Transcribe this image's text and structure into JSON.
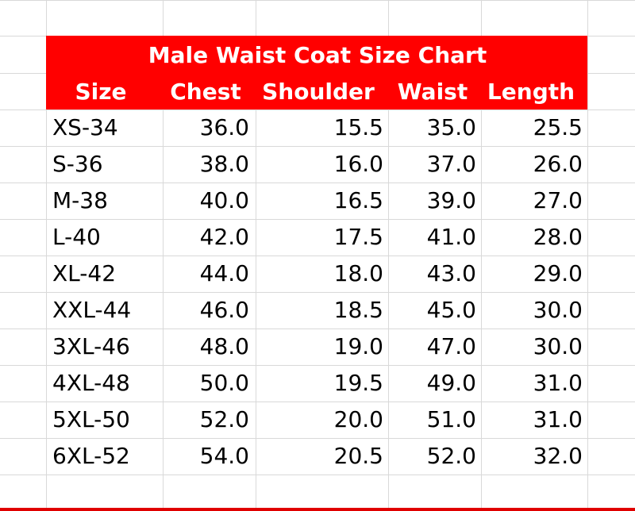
{
  "table": {
    "title": "Male Waist Coat Size Chart",
    "columns": [
      "Size",
      "Chest",
      "Shoulder",
      "Waist",
      "Length"
    ],
    "rows": [
      [
        "XS-34",
        "36.0",
        "15.5",
        "35.0",
        "25.5"
      ],
      [
        "S-36",
        "38.0",
        "16.0",
        "37.0",
        "26.0"
      ],
      [
        "M-38",
        "40.0",
        "16.5",
        "39.0",
        "27.0"
      ],
      [
        "L-40",
        "42.0",
        "17.5",
        "41.0",
        "28.0"
      ],
      [
        "XL-42",
        "44.0",
        "18.0",
        "43.0",
        "29.0"
      ],
      [
        "XXL-44",
        "46.0",
        "18.5",
        "45.0",
        "30.0"
      ],
      [
        "3XL-46",
        "48.0",
        "19.0",
        "47.0",
        "30.0"
      ],
      [
        "4XL-48",
        "50.0",
        "19.5",
        "49.0",
        "31.0"
      ],
      [
        "5XL-50",
        "52.0",
        "20.0",
        "51.0",
        "31.0"
      ],
      [
        "6XL-52",
        "54.0",
        "20.5",
        "52.0",
        "32.0"
      ]
    ]
  }
}
